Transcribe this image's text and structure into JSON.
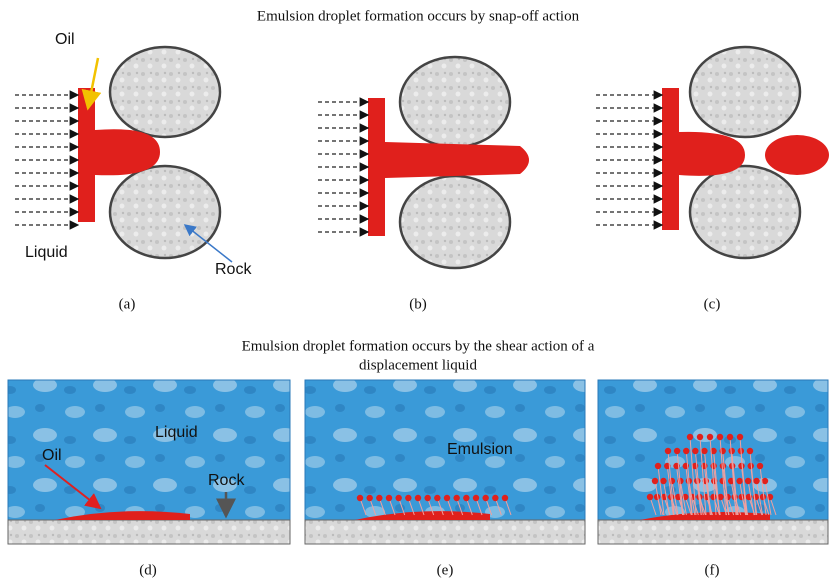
{
  "top": {
    "title": "Emulsion droplet formation occurs by snap-off action",
    "labels": {
      "oil": "Oil",
      "liquid": "Liquid",
      "rock": "Rock"
    },
    "panels": [
      "(a)",
      "(b)",
      "(c)"
    ]
  },
  "bottom": {
    "title": [
      "Emulsion droplet formation occurs by the shear action of a",
      "displacement liquid"
    ],
    "labels": {
      "liquid": "Liquid",
      "oil": "Oil",
      "rock": "Rock",
      "emulsion": "Emulsion"
    },
    "panels": [
      "(d)",
      "(e)",
      "(f)"
    ]
  }
}
